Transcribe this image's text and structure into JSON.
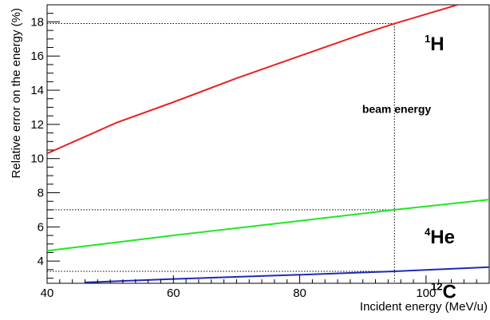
{
  "chart_data": {
    "type": "line",
    "xlabel": "Incident energy (MeV/u)",
    "ylabel": "Relative error on the energy (%)",
    "xlim": [
      40,
      110
    ],
    "ylim": [
      2.7,
      19.0
    ],
    "x_ticks": [
      40,
      60,
      80,
      100
    ],
    "x_tick_labels": [
      "40",
      "60",
      "80",
      "100"
    ],
    "y_ticks": [
      4,
      6,
      8,
      10,
      12,
      14,
      16,
      18
    ],
    "y_tick_labels": [
      "4",
      "6",
      "8",
      "10",
      "12",
      "14",
      "16",
      "18"
    ],
    "grid": false,
    "series": [
      {
        "name": "1H",
        "label_sup": "1",
        "label_main": "H",
        "color": "#e8231e",
        "x": [
          40,
          51,
          60,
          70,
          80,
          90,
          95,
          105
        ],
        "y": [
          10.3,
          12.1,
          13.3,
          14.7,
          16.0,
          17.3,
          17.9,
          19.0
        ]
      },
      {
        "name": "4He",
        "label_sup": "4",
        "label_main": "He",
        "color": "#22e622",
        "x": [
          40,
          60,
          80,
          95,
          110
        ],
        "y": [
          4.6,
          5.5,
          6.35,
          7.0,
          7.6
        ]
      },
      {
        "name": "12C",
        "label_sup": "12",
        "label_main": "C",
        "color": "#1f2ab8",
        "x": [
          46,
          60,
          80,
          95,
          110
        ],
        "y": [
          2.75,
          2.95,
          3.2,
          3.4,
          3.65
        ]
      }
    ],
    "reference_lines": {
      "beam_energy_x": 95,
      "levels_y": [
        17.9,
        7.0,
        3.4
      ]
    },
    "annotation": "beam energy"
  }
}
